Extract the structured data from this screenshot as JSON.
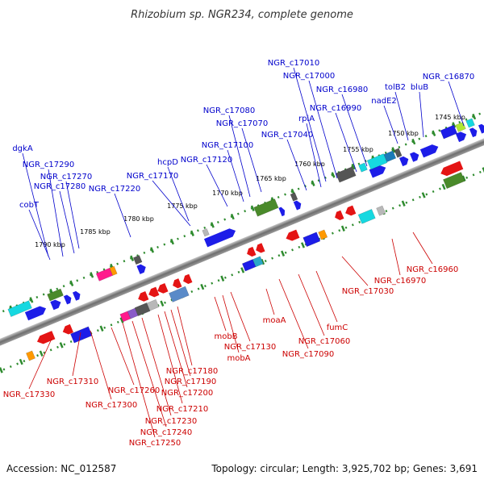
{
  "title": "Rhizobium sp. NGR234, complete genome",
  "accession": "Accession: NC_012587",
  "summary": "Topology: circular; Length: 3,925,702 bp; Genes: 3,691",
  "colors": {
    "forward_label": "#0000cc",
    "reverse_label": "#cc0000",
    "backbone": "#777777",
    "ticks": "#228b22"
  },
  "kbp_ticks": [
    "1790 kbp",
    "1785 kbp",
    "1780 kbp",
    "1775 kbp",
    "1770 kbp",
    "1765 kbp",
    "1760 kbp",
    "1755 kbp",
    "1750 kbp",
    "1745 kbp"
  ],
  "forward_labels": [
    "NGR_c17010",
    "NGR_c17000",
    "NGR_c16980",
    "NGR_c16990",
    "NGR_c16870",
    "tolB2",
    "bluB",
    "nadE2",
    "NGR_c17080",
    "NGR_c17070",
    "rpiA",
    "NGR_c17040",
    "NGR_c17100",
    "NGR_c17120",
    "hcpD",
    "NGR_c17170",
    "NGR_c17220",
    "dgkA",
    "NGR_c17290",
    "NGR_c17270",
    "NGR_c17280",
    "cobT"
  ],
  "reverse_labels": [
    "NGR_c16960",
    "NGR_c16970",
    "NGR_c17030",
    "fumC",
    "NGR_c17060",
    "NGR_c17090",
    "moaA",
    "mobB",
    "NGR_c17130",
    "mobA",
    "NGR_c17180",
    "NGR_c17190",
    "NGR_c17200",
    "NGR_c17210",
    "NGR_c17230",
    "NGR_c17240",
    "NGR_c17250",
    "NGR_c17260",
    "NGR_c17300",
    "NGR_c17310",
    "NGR_c17330"
  ]
}
